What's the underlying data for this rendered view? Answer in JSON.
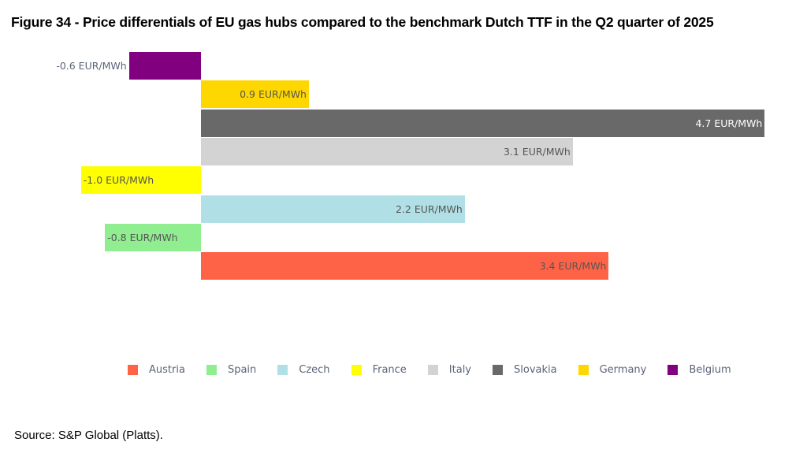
{
  "title": "Figure 34 - Price differentials of EU gas hubs compared to the benchmark Dutch TTF in the Q2 quarter of 2025",
  "source": "Source: S&P Global (Platts).",
  "chart_data": {
    "type": "bar",
    "orientation": "horizontal",
    "title": "Figure 34 - Price differentials of EU gas hubs compared to the benchmark Dutch TTF in the Q2 quarter of 2025",
    "xlabel": "",
    "ylabel": "",
    "unit": "EUR/MWh",
    "grid": false,
    "legend_position": "bottom",
    "categories": [
      "Belgium",
      "Germany",
      "Slovakia",
      "Italy",
      "France",
      "Czech",
      "Spain",
      "Austria"
    ],
    "values": [
      -0.6,
      0.9,
      4.7,
      3.1,
      -1.0,
      2.2,
      -0.8,
      3.4
    ],
    "labels": [
      "-0.6 EUR/MWh",
      "0.9 EUR/MWh",
      "4.7 EUR/MWh",
      "3.1 EUR/MWh",
      "-1.0 EUR/MWh",
      "2.2 EUR/MWh",
      "-0.8 EUR/MWh",
      "3.4 EUR/MWh"
    ],
    "colors": {
      "Belgium": "#800080",
      "Germany": "#FFD700",
      "Slovakia": "#696969",
      "Italy": "#D3D3D3",
      "France": "#FFFF00",
      "Czech": "#B0E0E6",
      "Spain": "#90EE90",
      "Austria": "#FF6347"
    },
    "legend": [
      "Austria",
      "Spain",
      "Czech",
      "France",
      "Italy",
      "Slovakia",
      "Germany",
      "Belgium"
    ]
  }
}
